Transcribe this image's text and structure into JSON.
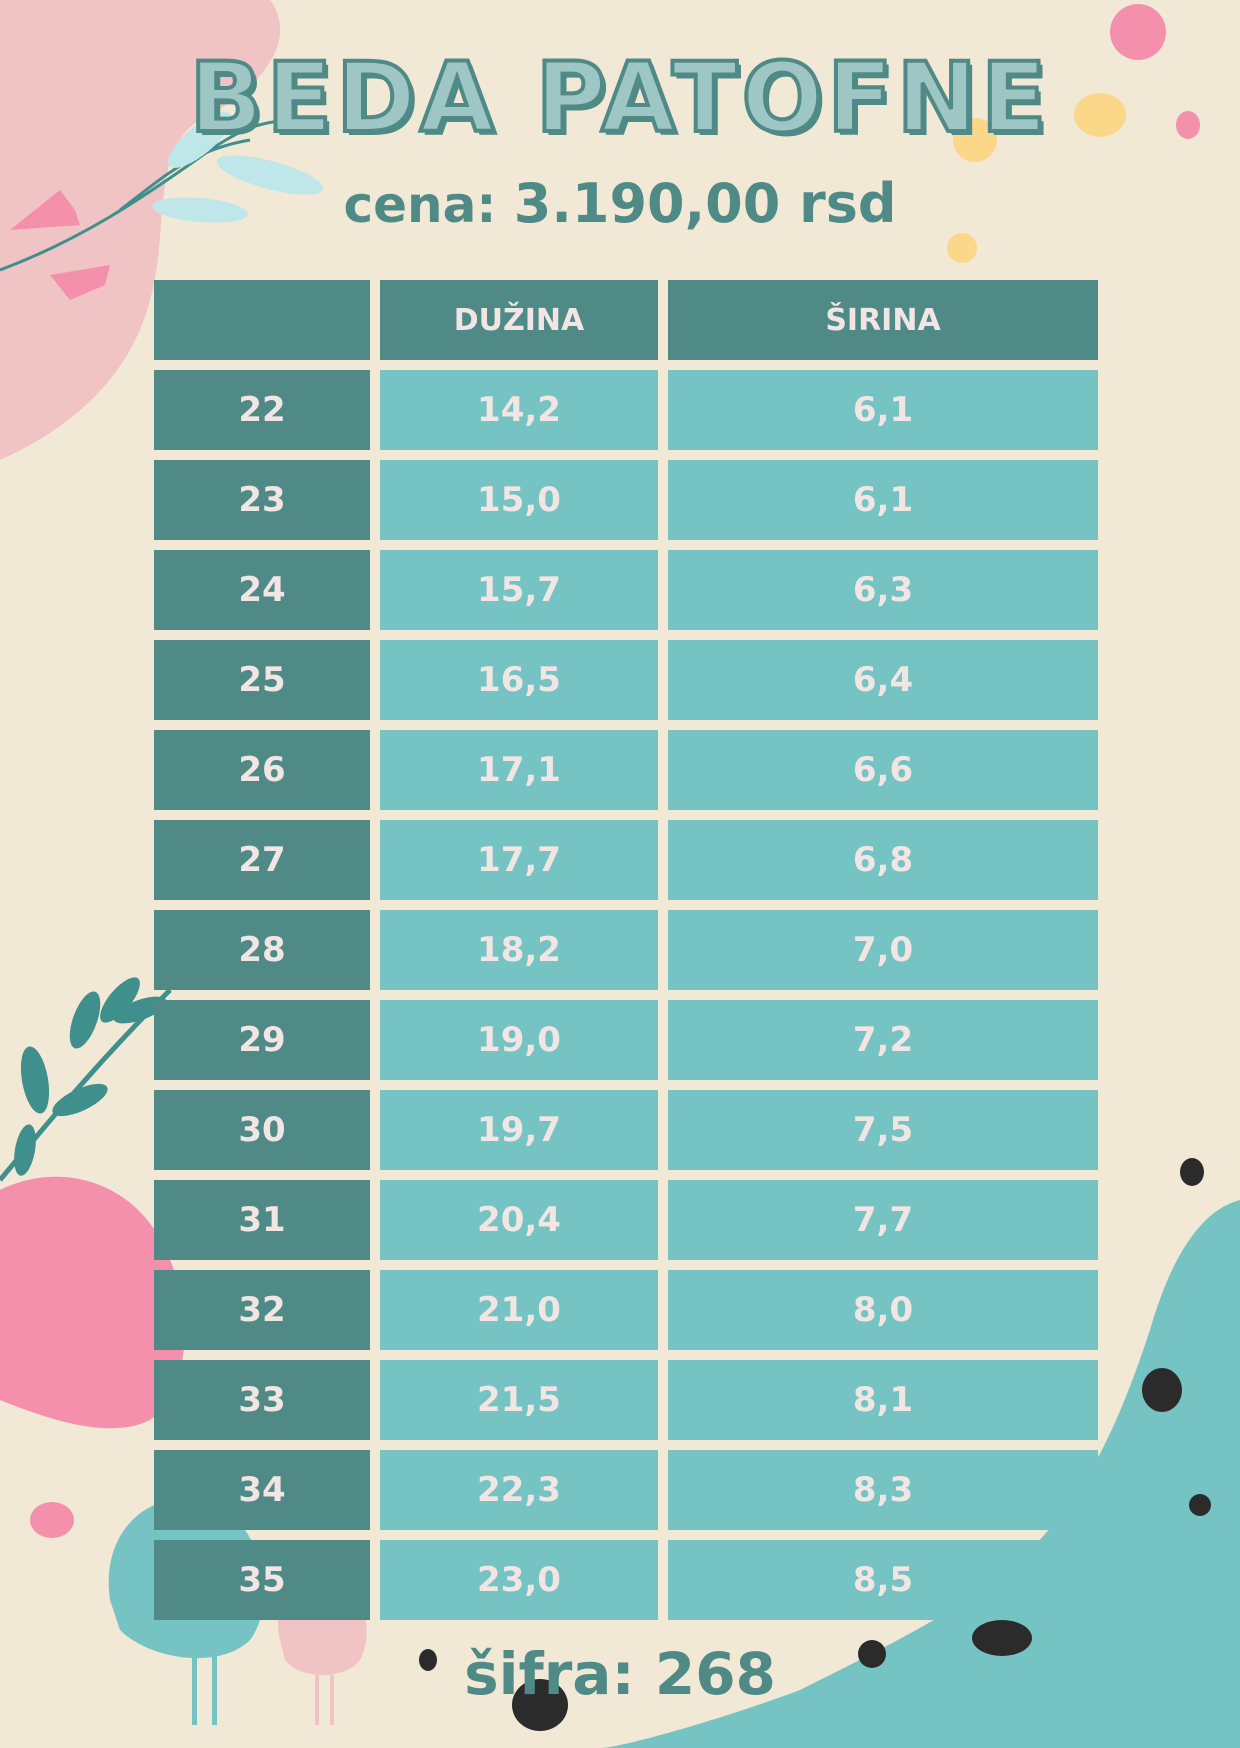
{
  "title": "BEDA PATOFNE",
  "price": {
    "label": "cena:",
    "value": "3.190,00 rsd"
  },
  "table": {
    "headers": [
      "",
      "DUŽINA",
      "ŠIRINA"
    ],
    "rows": [
      {
        "size": "22",
        "length": "14,2",
        "width": "6,1"
      },
      {
        "size": "23",
        "length": "15,0",
        "width": "6,1"
      },
      {
        "size": "24",
        "length": "15,7",
        "width": "6,3"
      },
      {
        "size": "25",
        "length": "16,5",
        "width": "6,4"
      },
      {
        "size": "26",
        "length": "17,1",
        "width": "6,6"
      },
      {
        "size": "27",
        "length": "17,7",
        "width": "6,8"
      },
      {
        "size": "28",
        "length": "18,2",
        "width": "7,0"
      },
      {
        "size": "29",
        "length": "19,0",
        "width": "7,2"
      },
      {
        "size": "30",
        "length": "19,7",
        "width": "7,5"
      },
      {
        "size": "31",
        "length": "20,4",
        "width": "7,7"
      },
      {
        "size": "32",
        "length": "21,0",
        "width": "8,0"
      },
      {
        "size": "33",
        "length": "21,5",
        "width": "8,1"
      },
      {
        "size": "34",
        "length": "22,3",
        "width": "8,3"
      },
      {
        "size": "35",
        "length": "23,0",
        "width": "8,5"
      }
    ]
  },
  "code": {
    "label": "šifra:",
    "value": "268"
  },
  "colors": {
    "background": "#f2e8d6",
    "dark_teal": "#4f8a87",
    "light_teal": "#76c3c3",
    "pink": "#f48fac",
    "soft_pink": "#f0c4c4",
    "yellow": "#fbd78a",
    "ink": "#2b2b2b"
  }
}
